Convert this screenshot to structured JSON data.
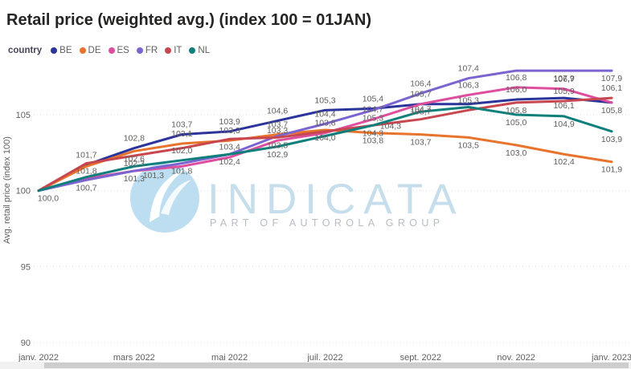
{
  "title": "Retail price (weighted avg.) (index 100 = 01JAN)",
  "legend": {
    "label": "country",
    "items": [
      {
        "code": "BE",
        "color": "#2B349B"
      },
      {
        "code": "DE",
        "color": "#E8732C"
      },
      {
        "code": "ES",
        "color": "#DE4E9E"
      },
      {
        "code": "FR",
        "color": "#7C64D0"
      },
      {
        "code": "IT",
        "color": "#C8474F"
      },
      {
        "code": "NL",
        "color": "#0F7F7C"
      }
    ]
  },
  "watermark": {
    "brand": "INDICATA",
    "tagline": "PART OF AUTOROLA GROUP",
    "circle_color": "#BCDEF0",
    "brand_color": "#C6DDEB",
    "tagline_color": "#B7BDC2"
  },
  "chart_data": {
    "type": "line",
    "x": [
      "janv. 2022",
      "févr. 2022",
      "mars 2022",
      "avr. 2022",
      "mai 2022",
      "juin 2022",
      "juil. 2022",
      "août 2022",
      "sept. 2022",
      "oct. 2022",
      "nov. 2022",
      "déc. 2022",
      "janv. 2023"
    ],
    "x_ticks_shown": [
      "janv. 2022",
      "mars 2022",
      "mai 2022",
      "juil. 2022",
      "sept. 2022",
      "nov. 2022",
      "janv. 2023"
    ],
    "ylabel": "Avg. retail price (index 100)",
    "y_ticks": [
      90,
      95,
      100,
      105
    ],
    "ylim": [
      88.5,
      108.7
    ],
    "grid": "horizontal-dotted",
    "legend_position": "top-left",
    "series": [
      {
        "name": "BE",
        "color": "#2B349B",
        "values": [
          100.0,
          101.7,
          102.8,
          103.7,
          103.9,
          104.6,
          105.3,
          105.4,
          105.7,
          105.7,
          106.0,
          106.1,
          105.8
        ],
        "labels": [
          "100,0",
          "101,7",
          "102,8",
          "103,7",
          "103,9",
          "104,6",
          "105,3",
          "105,4",
          "105,7",
          "",
          "106,0",
          "106,1",
          "105,8"
        ],
        "label_pos": [
          "b",
          "a",
          "a",
          "a",
          "a",
          "a",
          "a",
          "a",
          "b",
          "",
          "a",
          "b",
          "b"
        ]
      },
      {
        "name": "DE",
        "color": "#E8732C",
        "values": [
          100.0,
          101.6,
          102.6,
          103.1,
          103.3,
          103.7,
          104.0,
          103.8,
          103.7,
          103.5,
          103.0,
          102.4,
          101.9
        ],
        "labels": [
          "",
          "",
          "102,6",
          "103,1",
          "103,3",
          "103,7",
          "104,0",
          "103,8",
          "103,7",
          "103,5",
          "103,0",
          "102,4",
          "101,9"
        ],
        "label_pos": [
          "",
          "",
          "b",
          "a",
          "a",
          "a",
          "b",
          "b",
          "b",
          "b",
          "b",
          "b",
          "b"
        ]
      },
      {
        "name": "ES",
        "color": "#DE4E9E",
        "values": [
          100.0,
          100.8,
          101.3,
          101.6,
          102.2,
          103.3,
          103.8,
          104.7,
          105.7,
          106.3,
          106.8,
          106.7,
          105.8
        ],
        "labels": [
          "",
          "",
          "101,3",
          "",
          "",
          "103,3",
          "103,8",
          "104,7",
          "105,7",
          "106,3",
          "106,8",
          "106,7",
          ""
        ],
        "label_pos": [
          "",
          "",
          "br",
          "",
          "",
          "a",
          "a",
          "a",
          "a",
          "a",
          "a",
          "a",
          ""
        ]
      },
      {
        "name": "FR",
        "color": "#7C64D0",
        "values": [
          100.0,
          100.7,
          101.3,
          101.8,
          102.4,
          103.6,
          104.4,
          105.3,
          106.4,
          107.4,
          107.9,
          107.9,
          107.9
        ],
        "labels": [
          "",
          "100,7",
          "101,3",
          "101,8",
          "102,4",
          "",
          "104,4",
          "105,3",
          "106,4",
          "107,4",
          "",
          "107,9",
          "107,9"
        ],
        "label_pos": [
          "",
          "b",
          "b",
          "b",
          "b",
          "",
          "a",
          "b",
          "a",
          "a",
          "",
          "b",
          "b"
        ]
      },
      {
        "name": "IT",
        "color": "#C8474F",
        "values": [
          100.0,
          101.8,
          102.3,
          102.8,
          103.4,
          103.5,
          103.9,
          104.3,
          104.7,
          105.3,
          105.8,
          105.9,
          106.1
        ],
        "labels": [
          "",
          "101,8",
          "102,3",
          "",
          "103,4",
          "103,5",
          "",
          "104,3",
          "104,7",
          "105,3",
          "105,8",
          "105,9",
          "106,1"
        ],
        "label_pos": [
          "",
          "b",
          "b",
          "",
          "b",
          "b",
          "",
          "ar",
          "a",
          "a",
          "b",
          "a",
          "a"
        ]
      },
      {
        "name": "NL",
        "color": "#0F7F7C",
        "values": [
          100.0,
          100.9,
          101.6,
          102.0,
          102.4,
          102.9,
          103.6,
          104.3,
          105.2,
          105.5,
          105.0,
          104.9,
          103.9
        ],
        "labels": [
          "",
          "",
          "",
          "102,0",
          "",
          "102,9",
          "",
          "104,3",
          "",
          "",
          "105,0",
          "104,9",
          "103,9"
        ],
        "label_pos": [
          "",
          "",
          "",
          "a",
          "",
          "b",
          "",
          "b",
          "",
          "",
          "b",
          "b",
          "b"
        ]
      }
    ]
  }
}
